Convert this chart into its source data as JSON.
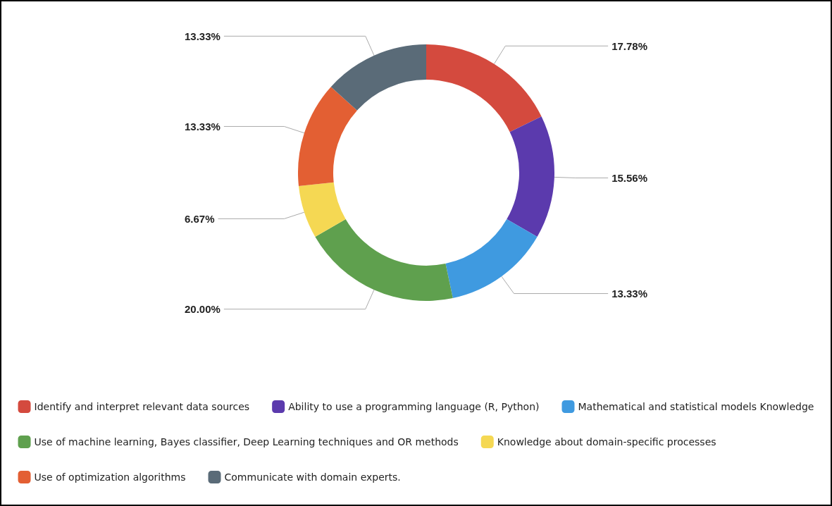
{
  "chart_data": {
    "type": "donut",
    "categories": [
      "Identify and interpret relevant data sources",
      "Ability to use a programming language (R, Python)",
      "Mathematical and statistical models Knowledge",
      "Use of machine learning, Bayes classifier, Deep Learning techniques and OR methods",
      "Knowledge about domain-specific processes",
      "Use of optimization algorithms",
      "Communicate with domain experts."
    ],
    "values": [
      17.78,
      15.56,
      13.33,
      20.0,
      6.67,
      13.33,
      13.33
    ],
    "value_labels": [
      "17.78%",
      "15.56%",
      "13.33%",
      "20.00%",
      "6.67%",
      "13.33%",
      "13.33%"
    ],
    "colors": [
      "#d44a3e",
      "#5b3aad",
      "#3f9ae0",
      "#5fa04e",
      "#f5d853",
      "#e35f33",
      "#5a6b78"
    ],
    "legend": "bottom"
  }
}
